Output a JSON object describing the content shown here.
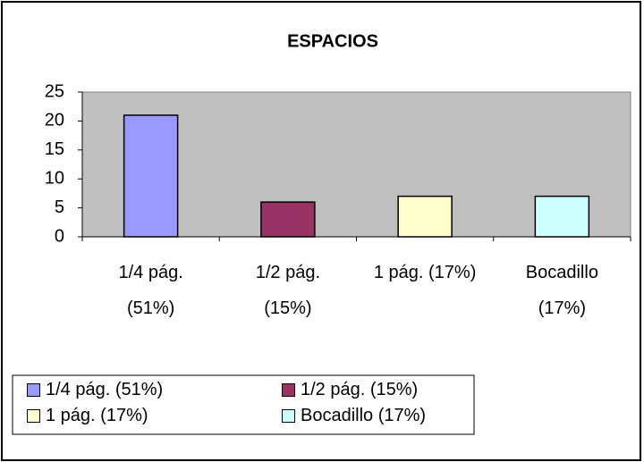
{
  "chart_data": {
    "type": "bar",
    "title": "ESPACIOS",
    "categories": [
      "1/4 pág. (51%)",
      "1/2 pág. (15%)",
      "1 pág. (17%)",
      "Bocadillo (17%)"
    ],
    "series": [
      {
        "name": "ESPACIOS",
        "values": [
          21,
          6,
          7,
          7
        ]
      }
    ],
    "colors": [
      "#9999ff",
      "#993366",
      "#ffffcc",
      "#ccffff"
    ],
    "ylim": [
      0,
      25
    ],
    "yticks": [
      0,
      5,
      10,
      15,
      20,
      25
    ],
    "grid": false,
    "legend": "bottom-left"
  }
}
